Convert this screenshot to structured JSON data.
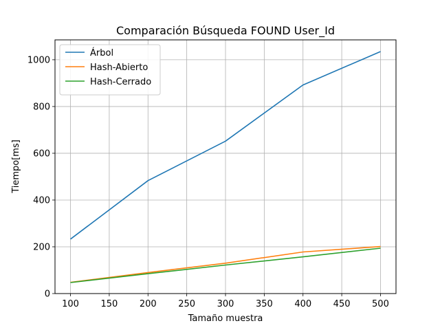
{
  "chart_data": {
    "type": "line",
    "title": "Comparación Búsqueda FOUND User_Id",
    "xlabel": "Tamaño muestra",
    "ylabel": "Tiempo[ms]",
    "x": [
      100,
      200,
      300,
      400,
      500
    ],
    "xlim": [
      80,
      520
    ],
    "ylim": [
      0,
      1085
    ],
    "xticks": [
      100,
      150,
      200,
      250,
      300,
      350,
      400,
      450,
      500
    ],
    "yticks": [
      0,
      200,
      400,
      600,
      800,
      1000
    ],
    "grid": true,
    "legend_position": "top-left",
    "series": [
      {
        "name": "Árbol",
        "color": "#1f77b4",
        "values": [
          233,
          483,
          652,
          892,
          1035
        ]
      },
      {
        "name": "Hash-Abierto",
        "color": "#ff7f0e",
        "values": [
          48,
          90,
          130,
          178,
          201
        ]
      },
      {
        "name": "Hash-Cerrado",
        "color": "#2ca02c",
        "values": [
          47,
          85,
          122,
          157,
          194
        ]
      }
    ]
  }
}
